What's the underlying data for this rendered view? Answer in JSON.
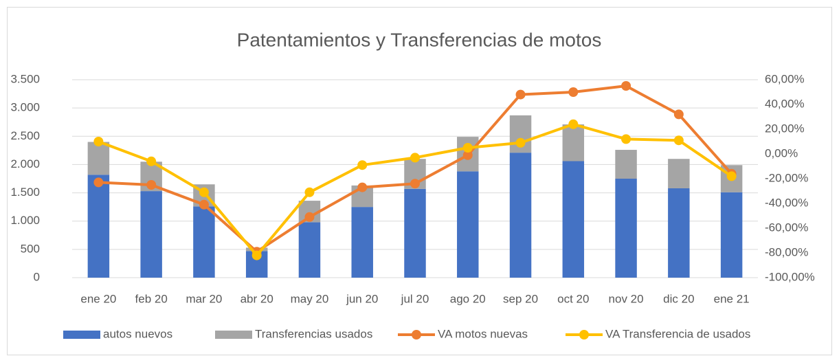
{
  "chart_data": {
    "type": "bar_line",
    "title": "Patentamientos y Transferencias de motos",
    "categories": [
      "ene 20",
      "feb 20",
      "mar 20",
      "abr 20",
      "may 20",
      "jun 20",
      "jul 20",
      "ago 20",
      "sep 20",
      "oct 20",
      "nov 20",
      "dic 20",
      "ene 21"
    ],
    "series": [
      {
        "name": "autos nuevos",
        "type": "bar",
        "color": "#4472c4",
        "values": [
          1820,
          1530,
          1260,
          470,
          980,
          1250,
          1570,
          1880,
          2210,
          2060,
          1750,
          1580,
          1510
        ]
      },
      {
        "name": "Transferencias usados",
        "type": "bar",
        "color": "#a5a5a5",
        "values": [
          580,
          520,
          390,
          60,
          380,
          380,
          530,
          610,
          660,
          650,
          510,
          520,
          480
        ]
      },
      {
        "name": "VA motos nuevas",
        "type": "line",
        "axis": "y2",
        "color": "#ed7d31",
        "values": [
          -23,
          -25,
          -41,
          -79,
          -51,
          -27,
          -24,
          -1,
          48,
          50,
          55,
          32,
          -16
        ]
      },
      {
        "name": "VA Transferencia de usados",
        "type": "line",
        "axis": "y2",
        "color": "#ffc000",
        "values": [
          10,
          -6,
          -31,
          -82,
          -31,
          -9,
          -3,
          5,
          9,
          24,
          12,
          11,
          -18
        ]
      }
    ],
    "ylim": [
      0,
      3500
    ],
    "yticks": [
      0,
      500,
      {
        "value": 1000,
        "label": "1.000"
      },
      {
        "value": 1500,
        "label": "1.500"
      },
      {
        "value": 2000,
        "label": "2.000"
      },
      {
        "value": 2500,
        "label": "2.500"
      },
      {
        "value": 3000,
        "label": "3.000"
      },
      {
        "value": 3500,
        "label": "3.500"
      }
    ],
    "y2lim": [
      -100,
      60
    ],
    "y2ticks": [
      {
        "value": -100,
        "label": "-100,00%"
      },
      {
        "value": -80,
        "label": "-80,00%"
      },
      {
        "value": -60,
        "label": "-60,00%"
      },
      {
        "value": -40,
        "label": "-40,00%"
      },
      {
        "value": -20,
        "label": "-20,00%"
      },
      {
        "value": 0,
        "label": "0,00%"
      },
      {
        "value": 20,
        "label": "20,00%"
      },
      {
        "value": 40,
        "label": "40,00%"
      },
      {
        "value": 60,
        "label": "60,00%"
      }
    ],
    "grid": true,
    "legend": "bottom"
  }
}
